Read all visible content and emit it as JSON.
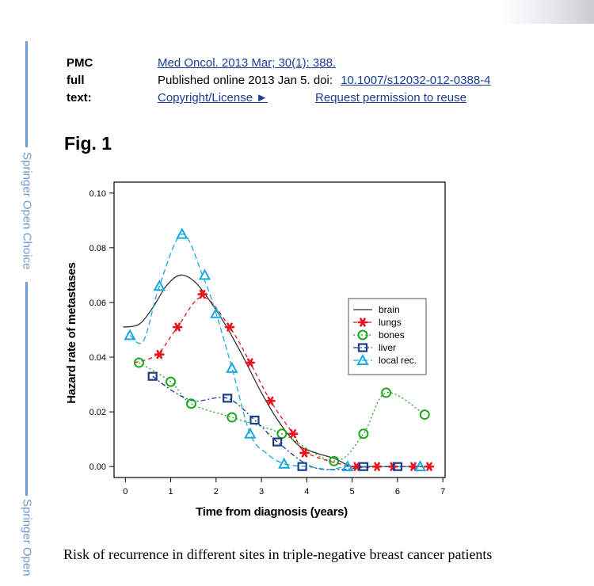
{
  "side_labels": [
    "Springer Open Choice",
    "Springer Open"
  ],
  "pmc": {
    "label": "PMC full text:",
    "citation": "Med Oncol. 2013 Mar; 30(1): 388.",
    "published_prefix": "Published online 2013 Jan 5. doi:",
    "doi": "10.1007/s12032-012-0388-4",
    "copyright": "Copyright/License ►",
    "permission": "Request permission to reuse"
  },
  "figure_title": "Fig. 1",
  "caption": "Risk of recurrence in different sites in triple-negative breast cancer patients",
  "colors": {
    "brain": "#333333",
    "lungs": "#e8131d",
    "bones": "#1ea81e",
    "liver": "#1c3e8a",
    "local": "#19a9df",
    "link": "#1a3e93",
    "side": "#6f9bd0"
  },
  "chart_data": {
    "type": "line",
    "title": "",
    "xlabel": "Time from diagnosis (years)",
    "ylabel": "Hazard rate of metastases",
    "xlim": [
      -0.25,
      7.05
    ],
    "ylim": [
      -0.004,
      0.104
    ],
    "xticks": [
      "0",
      "1",
      "2",
      "3",
      "4",
      "5",
      "6",
      "7"
    ],
    "yticks": [
      "0.00",
      "0.02",
      "0.04",
      "0.06",
      "0.08",
      "0.10"
    ],
    "legend_position": "right",
    "series": [
      {
        "name": "brain",
        "key": "brain",
        "dash": "solid",
        "marker": "none",
        "x": [
          -0.05,
          0.3,
          0.6,
          0.9,
          1.2,
          1.5,
          1.8,
          2.2,
          2.6,
          3.0,
          3.4,
          3.8,
          4.2,
          4.6,
          5.0,
          5.4,
          5.8,
          6.2,
          6.6
        ],
        "y": [
          0.051,
          0.052,
          0.058,
          0.066,
          0.07,
          0.068,
          0.062,
          0.052,
          0.04,
          0.027,
          0.016,
          0.008,
          0.005,
          0.003,
          0.0,
          0.0,
          0.0,
          0.0,
          0.0
        ]
      },
      {
        "name": "lungs",
        "key": "lungs",
        "dash": "5,4",
        "marker": "star",
        "x": [
          0.2,
          0.7,
          1.15,
          1.7,
          2.3,
          2.75,
          3.2,
          3.7,
          4.0,
          5.0,
          5.7,
          6.3,
          6.75
        ],
        "y": [
          0.038,
          0.041,
          0.051,
          0.062,
          0.051,
          0.038,
          0.024,
          0.012,
          0.005,
          0.0,
          0.0,
          0.0,
          0.0
        ],
        "markers_x": [
          0.75,
          1.15,
          1.7,
          2.3,
          2.75,
          3.2,
          3.7,
          3.95,
          5.1,
          5.55,
          5.9,
          6.35,
          6.7
        ],
        "markers_y": [
          0.041,
          0.051,
          0.063,
          0.051,
          0.038,
          0.024,
          0.012,
          0.005,
          0.0,
          0.0,
          0.0,
          0.0,
          0.0
        ]
      },
      {
        "name": "bones",
        "key": "bones",
        "dash": "2,3",
        "marker": "circle",
        "x": [
          0.3,
          1.0,
          1.45,
          2.35,
          3.45,
          4.6,
          5.25,
          5.75,
          6.6
        ],
        "y": [
          0.038,
          0.031,
          0.023,
          0.018,
          0.012,
          0.002,
          0.012,
          0.027,
          0.019
        ]
      },
      {
        "name": "liver",
        "key": "liver",
        "dash": "6,3,2,3",
        "marker": "square",
        "x": [
          0.6,
          1.1,
          1.55,
          2.25,
          2.85,
          3.35,
          4.1,
          4.8,
          5.3,
          5.75,
          6.2,
          6.55
        ],
        "y": [
          0.033,
          0.027,
          0.024,
          0.025,
          0.017,
          0.009,
          0.0,
          -0.001,
          0.0,
          0.0,
          0.0,
          0.0
        ],
        "markers_x": [
          0.6,
          2.25,
          2.85,
          3.35,
          3.9,
          5.25,
          6.0
        ],
        "markers_y": [
          0.033,
          0.025,
          0.017,
          0.009,
          0.0,
          0.0,
          0.0
        ]
      },
      {
        "name": "local rec.",
        "key": "local",
        "dash": "7,4",
        "marker": "triangle",
        "x": [
          0.1,
          0.4,
          0.75,
          1.25,
          1.7,
          2.0,
          2.35,
          2.75,
          3.1,
          3.5,
          4.0,
          4.5,
          4.9,
          5.5,
          6.0,
          6.5
        ],
        "y": [
          0.048,
          0.046,
          0.066,
          0.085,
          0.07,
          0.056,
          0.036,
          0.012,
          0.005,
          0.001,
          0.0,
          -0.001,
          0.0,
          0.0,
          0.0,
          0.0
        ],
        "markers_x": [
          0.1,
          0.75,
          1.25,
          1.75,
          2.0,
          2.35,
          2.75,
          3.5,
          4.9,
          6.5
        ],
        "markers_y": [
          0.048,
          0.066,
          0.085,
          0.07,
          0.056,
          0.036,
          0.012,
          0.001,
          0.0,
          0.0
        ]
      }
    ]
  }
}
